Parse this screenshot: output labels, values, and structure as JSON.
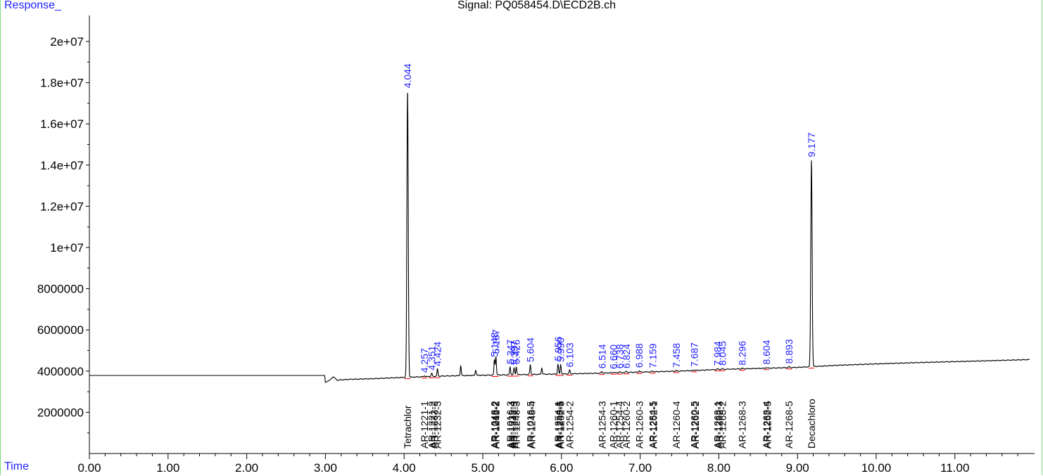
{
  "header": {
    "y_axis_title": "Response_",
    "signal_title": "Signal: PQ058454.D\\ECD2B.ch",
    "x_axis_title": "Time"
  },
  "colors": {
    "trace": "#000000",
    "peak_label": "#1f1fff",
    "axis_title": "#1f1fff",
    "baseline_marker": "#ff0000",
    "compound_label": "#000000",
    "frame": "#7ddc7d"
  },
  "chart_data": {
    "type": "line",
    "title": "Signal: PQ058454.D\\ECD2B.ch",
    "xlabel": "Time",
    "ylabel": "Response_",
    "xlim": [
      0,
      12
    ],
    "ylim": [
      0,
      20500000
    ],
    "x_ticks": [
      0,
      1,
      2,
      3,
      4,
      5,
      6,
      7,
      8,
      9,
      10,
      11
    ],
    "x_tick_labels": [
      "0.00",
      "1.00",
      "2.00",
      "3.00",
      "4.00",
      "5.00",
      "6.00",
      "7.00",
      "8.00",
      "9.00",
      "10.00",
      "11.00"
    ],
    "y_ticks": [
      2000000,
      4000000,
      6000000,
      8000000,
      10000000,
      12000000,
      14000000,
      16000000,
      18000000,
      20000000
    ],
    "y_tick_labels": [
      "2000000",
      "4000000",
      "6000000",
      "8000000",
      "1e+07",
      "1.2e+07",
      "1.4e+07",
      "1.6e+07",
      "1.8e+07",
      "2e+07"
    ],
    "baseline": [
      [
        0.0,
        3790000
      ],
      [
        2.99,
        3790000
      ],
      [
        3.0,
        3450000
      ],
      [
        3.05,
        3550000
      ],
      [
        3.1,
        3720000
      ],
      [
        3.15,
        3560000
      ],
      [
        3.3,
        3600000
      ],
      [
        3.6,
        3630000
      ],
      [
        3.9,
        3680000
      ],
      [
        4.2,
        3720000
      ],
      [
        4.5,
        3760000
      ],
      [
        5.0,
        3800000
      ],
      [
        5.5,
        3830000
      ],
      [
        6.0,
        3860000
      ],
      [
        6.5,
        3900000
      ],
      [
        7.0,
        3950000
      ],
      [
        7.5,
        4000000
      ],
      [
        8.0,
        4080000
      ],
      [
        8.5,
        4130000
      ],
      [
        9.0,
        4180000
      ],
      [
        9.5,
        4280000
      ],
      [
        10.0,
        4350000
      ],
      [
        10.5,
        4410000
      ],
      [
        11.0,
        4460000
      ],
      [
        11.5,
        4510000
      ],
      [
        11.95,
        4560000
      ]
    ],
    "peaks": [
      {
        "rt": 4.044,
        "height": 17600000,
        "label": "4.044",
        "labeled": true
      },
      {
        "rt": 4.257,
        "height": 3780000,
        "label": "4.257",
        "labeled": true
      },
      {
        "rt": 4.351,
        "height": 3900000,
        "label": "4.351",
        "labeled": true
      },
      {
        "rt": 4.424,
        "height": 4100000,
        "label": "4.424",
        "labeled": true
      },
      {
        "rt": 4.72,
        "height": 4250000,
        "label": "",
        "labeled": false
      },
      {
        "rt": 4.91,
        "height": 4050000,
        "label": "",
        "labeled": false
      },
      {
        "rt": 5.148,
        "height": 4550000,
        "label": "5.148",
        "labeled": true
      },
      {
        "rt": 5.167,
        "height": 4700000,
        "label": "5.167",
        "labeled": true
      },
      {
        "rt": 5.347,
        "height": 4200000,
        "label": "5.347",
        "labeled": true
      },
      {
        "rt": 5.397,
        "height": 4150000,
        "label": "5.397",
        "labeled": true
      },
      {
        "rt": 5.426,
        "height": 4200000,
        "label": "5.426",
        "labeled": true
      },
      {
        "rt": 5.604,
        "height": 4300000,
        "label": "5.604",
        "labeled": true
      },
      {
        "rt": 5.75,
        "height": 4150000,
        "label": "",
        "labeled": false
      },
      {
        "rt": 5.956,
        "height": 4350000,
        "label": "5.956",
        "labeled": true
      },
      {
        "rt": 5.99,
        "height": 4300000,
        "label": "5.990",
        "labeled": true
      },
      {
        "rt": 6.103,
        "height": 4050000,
        "label": "6.103",
        "labeled": true
      },
      {
        "rt": 6.514,
        "height": 3980000,
        "label": "6.514",
        "labeled": true
      },
      {
        "rt": 6.66,
        "height": 3960000,
        "label": "6.660",
        "labeled": true
      },
      {
        "rt": 6.738,
        "height": 3980000,
        "label": "6.738",
        "labeled": true
      },
      {
        "rt": 6.824,
        "height": 3990000,
        "label": "6.824",
        "labeled": true
      },
      {
        "rt": 6.988,
        "height": 4020000,
        "label": "6.988",
        "labeled": true
      },
      {
        "rt": 7.159,
        "height": 4010000,
        "label": "7.159",
        "labeled": true
      },
      {
        "rt": 7.458,
        "height": 4030000,
        "label": "7.458",
        "labeled": true
      },
      {
        "rt": 7.687,
        "height": 4060000,
        "label": "7.687",
        "labeled": true
      },
      {
        "rt": 7.984,
        "height": 4120000,
        "label": "7.984",
        "labeled": true
      },
      {
        "rt": 8.045,
        "height": 4130000,
        "label": "8.045",
        "labeled": true
      },
      {
        "rt": 8.296,
        "height": 4140000,
        "label": "8.296",
        "labeled": true
      },
      {
        "rt": 8.604,
        "height": 4180000,
        "label": "8.604",
        "labeled": true
      },
      {
        "rt": 8.893,
        "height": 4220000,
        "label": "8.893",
        "labeled": true
      },
      {
        "rt": 9.177,
        "height": 14250000,
        "label": "9.177",
        "labeled": true
      }
    ],
    "compound_labels": [
      {
        "rt": 4.044,
        "text": "Tetrachlor"
      },
      {
        "rt": 4.257,
        "text": "AR-1221-1"
      },
      {
        "rt": 4.351,
        "text": "AR-1221-2"
      },
      {
        "rt": 4.38,
        "text": "AR-1232-2"
      },
      {
        "rt": 4.424,
        "text": "AR-1232-3"
      },
      {
        "rt": 5.148,
        "text": "AR-1248-2"
      },
      {
        "rt": 5.16,
        "text": "AR-1016-2"
      },
      {
        "rt": 5.167,
        "text": "AR-1242-2"
      },
      {
        "rt": 5.347,
        "text": "AR-1016-3"
      },
      {
        "rt": 5.37,
        "text": "AR-1232-4"
      },
      {
        "rt": 5.397,
        "text": "AR-1242-3"
      },
      {
        "rt": 5.426,
        "text": "AR-1248-3"
      },
      {
        "rt": 5.604,
        "text": "AR-1016-5"
      },
      {
        "rt": 5.62,
        "text": "AR-1248-4"
      },
      {
        "rt": 5.956,
        "text": "AR-1254-1"
      },
      {
        "rt": 5.975,
        "text": "AR-1248-5"
      },
      {
        "rt": 5.99,
        "text": "AR-1262-5"
      },
      {
        "rt": 6.103,
        "text": "AR-1254-2"
      },
      {
        "rt": 6.514,
        "text": "AR-1254-3"
      },
      {
        "rt": 6.66,
        "text": "AR-1260-1"
      },
      {
        "rt": 6.738,
        "text": "AR-1254-4"
      },
      {
        "rt": 6.824,
        "text": "AR-1260-2"
      },
      {
        "rt": 6.988,
        "text": "AR-1260-3"
      },
      {
        "rt": 7.159,
        "text": "AR-1254-5"
      },
      {
        "rt": 7.17,
        "text": "AR-1262-1"
      },
      {
        "rt": 7.458,
        "text": "AR-1260-4"
      },
      {
        "rt": 7.687,
        "text": "AR-1260-5"
      },
      {
        "rt": 7.7,
        "text": "AR-1262-2"
      },
      {
        "rt": 7.984,
        "text": "AR-1268-1"
      },
      {
        "rt": 8.0,
        "text": "AR-1262-3"
      },
      {
        "rt": 8.045,
        "text": "AR-1268-2"
      },
      {
        "rt": 8.296,
        "text": "AR-1268-3"
      },
      {
        "rt": 8.604,
        "text": "AR-1268-4"
      },
      {
        "rt": 8.62,
        "text": "AR-1262-5"
      },
      {
        "rt": 8.893,
        "text": "AR-1268-5"
      },
      {
        "rt": 9.177,
        "text": "Decachloro"
      }
    ],
    "grid": false,
    "legend": "none"
  }
}
